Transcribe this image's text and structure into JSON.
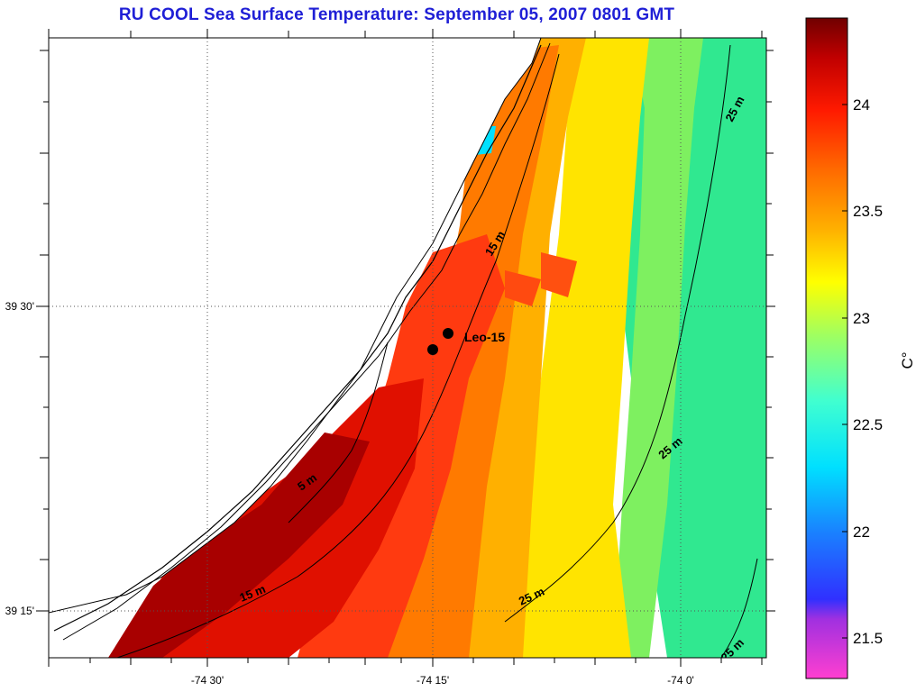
{
  "title": "RU COOL  Sea Surface Temperature:  September 05, 2007 0801 GMT",
  "map": {
    "x_ticks": [
      "-74 30'",
      "-74 15'",
      "-74 0'"
    ],
    "y_ticks": [
      "39 30'",
      "39 15'"
    ],
    "contours": [
      "25 m",
      "15 m",
      "5 m",
      "25 m",
      "15 m",
      "25 m",
      "25 m"
    ],
    "station": {
      "label": "Leo-15"
    }
  },
  "colorbar": {
    "unit": "C°",
    "ticks": [
      "24",
      "23.5",
      "23",
      "22.5",
      "22",
      "21.5"
    ],
    "min": 21.3,
    "max": 24.4,
    "colors": [
      "#ff3fd0",
      "#a030e0",
      "#3030ff",
      "#1a80ff",
      "#00e0ff",
      "#40ffd0",
      "#a0ff60",
      "#ffff00",
      "#ffb000",
      "#ff6a00",
      "#ff1a00",
      "#c00000",
      "#700000"
    ]
  },
  "colors": {
    "land": "#ffffff",
    "title": "#1f1fd6"
  }
}
